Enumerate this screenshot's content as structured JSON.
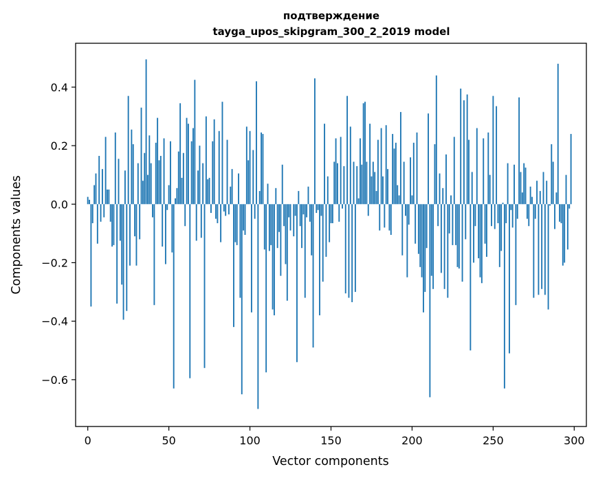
{
  "chart_data": {
    "type": "bar",
    "title": "подтверждение",
    "subtitle": "tayga_upos_skipgram_300_2_2019 model",
    "xlabel": "Vector components",
    "ylabel": "Components values",
    "xlim": [
      -7.5,
      307.5
    ],
    "ylim": [
      -0.76,
      0.55
    ],
    "xticks": [
      0,
      50,
      100,
      150,
      200,
      250,
      300
    ],
    "xtick_labels": [
      "0",
      "50",
      "100",
      "150",
      "200",
      "250",
      "300"
    ],
    "yticks": [
      -0.6,
      -0.4,
      -0.2,
      0.0,
      0.2,
      0.4
    ],
    "ytick_labels": [
      "−0.6",
      "−0.4",
      "−0.2",
      "0.0",
      "0.2",
      "0.4"
    ],
    "bar_color": "#1f77b4",
    "values": [
      0.025,
      0.015,
      -0.35,
      -0.065,
      0.065,
      0.105,
      -0.135,
      0.165,
      -0.06,
      0.12,
      -0.045,
      0.23,
      0.05,
      0.05,
      -0.06,
      -0.145,
      -0.14,
      0.245,
      -0.34,
      0.155,
      -0.125,
      -0.275,
      -0.395,
      0.115,
      -0.365,
      0.37,
      -0.21,
      0.255,
      0.205,
      -0.11,
      -0.21,
      0.14,
      -0.12,
      0.33,
      0.08,
      0.175,
      0.495,
      0.1,
      0.235,
      0.14,
      -0.045,
      -0.345,
      0.21,
      0.295,
      0.15,
      0.165,
      -0.145,
      0.225,
      -0.205,
      -0.02,
      0.065,
      0.215,
      -0.165,
      -0.63,
      0.02,
      0.055,
      0.18,
      0.345,
      0.09,
      0.175,
      -0.075,
      0.295,
      0.275,
      -0.595,
      0.215,
      0.26,
      0.425,
      -0.125,
      0.115,
      0.2,
      -0.115,
      0.14,
      -0.56,
      0.3,
      0.085,
      0.09,
      -0.03,
      0.215,
      0.29,
      -0.05,
      -0.065,
      0.25,
      -0.13,
      0.35,
      -0.025,
      -0.04,
      0.22,
      -0.035,
      0.06,
      0.12,
      -0.42,
      -0.13,
      -0.14,
      0.105,
      -0.32,
      -0.65,
      -0.09,
      -0.105,
      0.265,
      0.15,
      0.25,
      -0.37,
      0.185,
      -0.05,
      0.42,
      -0.7,
      0.045,
      0.245,
      0.24,
      -0.155,
      -0.575,
      0.07,
      -0.16,
      -0.14,
      -0.36,
      -0.38,
      0.055,
      -0.15,
      -0.095,
      -0.245,
      0.135,
      -0.075,
      -0.205,
      -0.33,
      -0.045,
      -0.09,
      0.0,
      -0.11,
      -0.04,
      -0.54,
      0.045,
      -0.075,
      -0.15,
      -0.035,
      -0.32,
      -0.045,
      0.06,
      -0.06,
      -0.175,
      -0.49,
      0.43,
      -0.03,
      -0.02,
      -0.38,
      -0.04,
      -0.265,
      0.275,
      -0.18,
      0.095,
      -0.13,
      -0.065,
      -0.065,
      0.145,
      0.225,
      0.14,
      -0.06,
      0.23,
      -0.015,
      0.13,
      -0.305,
      0.37,
      -0.32,
      0.265,
      -0.335,
      0.145,
      -0.3,
      0.13,
      0.02,
      0.225,
      0.135,
      0.345,
      0.35,
      0.145,
      -0.04,
      0.275,
      0.095,
      0.145,
      0.11,
      0.045,
      0.22,
      -0.09,
      0.26,
      0.095,
      -0.08,
      0.27,
      0.12,
      -0.09,
      -0.105,
      0.24,
      0.19,
      0.21,
      0.065,
      0.03,
      0.315,
      -0.175,
      0.145,
      -0.04,
      -0.25,
      -0.07,
      0.16,
      0.03,
      0.21,
      -0.135,
      0.245,
      -0.17,
      -0.215,
      -0.25,
      -0.37,
      -0.3,
      -0.15,
      0.31,
      -0.66,
      -0.245,
      -0.29,
      0.205,
      0.44,
      -0.075,
      0.105,
      -0.235,
      0.055,
      -0.29,
      0.17,
      -0.32,
      -0.1,
      0.03,
      -0.14,
      0.23,
      -0.14,
      -0.215,
      -0.22,
      0.395,
      -0.265,
      0.355,
      -0.12,
      0.375,
      0.22,
      -0.5,
      0.11,
      -0.2,
      -0.075,
      0.26,
      -0.185,
      -0.25,
      -0.27,
      0.225,
      -0.135,
      -0.18,
      0.245,
      0.1,
      -0.075,
      0.37,
      -0.085,
      0.335,
      -0.065,
      -0.215,
      -0.16,
      0.005,
      -0.63,
      -0.065,
      0.14,
      -0.51,
      -0.02,
      -0.08,
      0.135,
      -0.345,
      -0.05,
      0.365,
      0.11,
      0.04,
      0.14,
      0.125,
      -0.05,
      -0.075,
      0.06,
      0.025,
      -0.32,
      -0.05,
      0.08,
      -0.31,
      0.045,
      -0.29,
      0.11,
      -0.31,
      0.08,
      -0.36,
      -0.005,
      0.205,
      0.145,
      -0.085,
      0.04,
      0.48,
      -0.06,
      -0.065,
      -0.21,
      -0.2,
      0.1,
      -0.155,
      -0.015,
      0.24
    ]
  }
}
